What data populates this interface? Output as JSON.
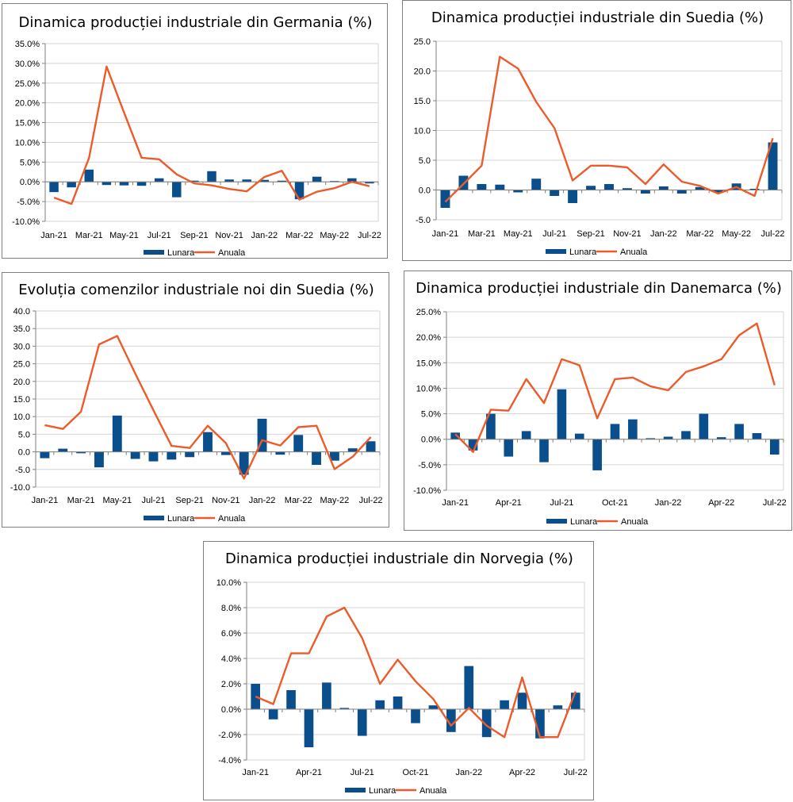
{
  "colors": {
    "monthly": "#0a4f8c",
    "annual": "#ec5b2a",
    "grid": "#d4d4d4",
    "axis": "#7f7f7f"
  },
  "chart_data": [
    {
      "id": "germania",
      "type": "bar+line",
      "title": "Dinamica producției industriale din Germania (%)",
      "x_tick_labels": [
        "Jan-21",
        "Mar-21",
        "May-21",
        "Jul-21",
        "Sep-21",
        "Nov-21",
        "Jan-22",
        "Mar-22",
        "May-22",
        "Jul-22"
      ],
      "y_tick_labels": [
        "35.0%",
        "30.0%",
        "25.0%",
        "20.0%",
        "15.0%",
        "10.0%",
        "5.0%",
        "0.0%",
        "-5.0%",
        "-10.0%"
      ],
      "ylim": [
        -10,
        35
      ],
      "legend": [
        "Lunara",
        "Anuala"
      ],
      "series": [
        {
          "name": "Lunara",
          "kind": "bar",
          "values": [
            -2.6,
            -1.4,
            3.1,
            -0.8,
            -0.9,
            -1.0,
            0.9,
            -3.9,
            0.3,
            2.7,
            0.6,
            0.6,
            0.5,
            0.3,
            -4.4,
            1.3,
            0.2,
            0.9,
            -0.4
          ]
        },
        {
          "name": "Anuala",
          "kind": "line",
          "values": [
            -4.0,
            -5.6,
            6.1,
            29.2,
            17.5,
            6.1,
            5.7,
            1.9,
            -0.4,
            -0.9,
            -1.8,
            -2.4,
            1.2,
            2.8,
            -4.5,
            -2.5,
            -1.6,
            0.0,
            -1.1
          ]
        }
      ]
    },
    {
      "id": "suedia",
      "type": "bar+line",
      "title": "Dinamica producției industriale din Suedia (%)",
      "x_tick_labels": [
        "Jan-21",
        "Mar-21",
        "May-21",
        "Jul-21",
        "Sep-21",
        "Nov-21",
        "Jan-22",
        "Mar-22",
        "May-22",
        "Jul-22"
      ],
      "y_tick_labels": [
        "25.0",
        "20.0",
        "15.0",
        "10.0",
        "5.0",
        "0.0",
        "-5.0"
      ],
      "ylim": [
        -5,
        25
      ],
      "legend": [
        "Lunara",
        "Anuala"
      ],
      "series": [
        {
          "name": "Lunara",
          "kind": "bar",
          "values": [
            -3.0,
            2.4,
            1.0,
            0.9,
            -0.4,
            1.9,
            -1.0,
            -2.2,
            0.7,
            1.0,
            0.3,
            -0.6,
            0.6,
            -0.6,
            0.5,
            -0.4,
            1.1,
            0.2,
            8.0
          ]
        },
        {
          "name": "Anuala",
          "kind": "line",
          "values": [
            -2.0,
            1.0,
            4.1,
            22.4,
            20.4,
            14.8,
            10.4,
            1.6,
            4.1,
            4.1,
            3.8,
            1.0,
            4.3,
            1.4,
            0.7,
            -0.6,
            0.5,
            -1.0,
            8.7
          ]
        }
      ]
    },
    {
      "id": "comenzi-suedia",
      "type": "bar+line",
      "title": "Evoluția comenzilor industriale noi din Suedia (%)",
      "x_tick_labels": [
        "Jan-21",
        "Mar-21",
        "May-21",
        "Jul-21",
        "Sep-21",
        "Nov-21",
        "Jan-22",
        "Mar-22",
        "May-22",
        "Jul-22"
      ],
      "y_tick_labels": [
        "40.0",
        "35.0",
        "30.0",
        "25.0",
        "20.0",
        "15.0",
        "10.0",
        "5.0",
        "0.0",
        "-5.0",
        "-10.0"
      ],
      "ylim": [
        -10,
        40
      ],
      "legend": [
        "Lunara",
        "Anuala"
      ],
      "series": [
        {
          "name": "Lunara",
          "kind": "bar",
          "values": [
            -1.8,
            0.9,
            -0.4,
            -4.4,
            10.3,
            -2.0,
            -2.7,
            -2.2,
            -1.5,
            5.6,
            -0.9,
            -6.5,
            9.4,
            -0.8,
            4.8,
            -3.7,
            -2.5,
            1.0,
            3.0
          ]
        },
        {
          "name": "Anuala",
          "kind": "line",
          "values": [
            7.6,
            6.5,
            11.4,
            30.5,
            32.9,
            22.2,
            11.8,
            1.7,
            1.1,
            7.4,
            2.5,
            -7.6,
            3.3,
            1.8,
            7.0,
            7.4,
            -4.9,
            -1.4,
            4.2
          ]
        }
      ]
    },
    {
      "id": "danemarca",
      "type": "bar+line",
      "title": "Dinamica producției industriale din Danemarca (%)",
      "x_tick_labels": [
        "Jan-21",
        "Apr-21",
        "Jul-21",
        "Oct-21",
        "Jan-22",
        "Apr-22",
        "Jul-22"
      ],
      "y_tick_labels": [
        "25.0%",
        "20.0%",
        "15.0%",
        "10.0%",
        "5.0%",
        "0.0%",
        "-5.0%",
        "-10.0%"
      ],
      "ylim": [
        -10,
        25
      ],
      "legend": [
        "Lunara",
        "Anuala"
      ],
      "series": [
        {
          "name": "Lunara",
          "kind": "bar",
          "values": [
            1.3,
            -2.2,
            5.0,
            -3.4,
            1.6,
            -4.5,
            9.8,
            1.1,
            -6.1,
            3.0,
            3.9,
            0.2,
            0.5,
            1.6,
            5.0,
            0.4,
            3.0,
            1.2,
            -3.0
          ]
        },
        {
          "name": "Anuala",
          "kind": "line",
          "values": [
            1.0,
            -2.5,
            5.8,
            5.6,
            11.8,
            7.1,
            15.7,
            14.5,
            4.1,
            11.8,
            12.1,
            10.4,
            9.6,
            13.2,
            14.3,
            15.7,
            20.4,
            22.7,
            10.6
          ]
        }
      ]
    },
    {
      "id": "norvegia",
      "type": "bar+line",
      "title": "Dinamica producției industriale din Norvegia (%)",
      "x_tick_labels": [
        "Jan-21",
        "Apr-21",
        "Jul-21",
        "Oct-21",
        "Jan-22",
        "Apr-22",
        "Jul-22"
      ],
      "y_tick_labels": [
        "10.0%",
        "8.0%",
        "6.0%",
        "4.0%",
        "2.0%",
        "0.0%",
        "-2.0%",
        "-4.0%"
      ],
      "ylim": [
        -4,
        10
      ],
      "legend": [
        "Lunara",
        "Anuala"
      ],
      "series": [
        {
          "name": "Lunara",
          "kind": "bar",
          "values": [
            2.0,
            -0.8,
            1.5,
            -3.0,
            2.1,
            0.1,
            -2.1,
            0.7,
            1.0,
            -1.1,
            0.3,
            -1.8,
            3.4,
            -2.2,
            0.7,
            1.3,
            -2.3,
            0.3,
            1.3
          ]
        },
        {
          "name": "Anuala",
          "kind": "line",
          "values": [
            1.0,
            0.4,
            4.4,
            4.4,
            7.3,
            8.0,
            5.6,
            2.0,
            3.9,
            2.2,
            0.8,
            -1.3,
            0.1,
            -1.3,
            -2.2,
            2.5,
            -2.2,
            -2.2,
            1.4
          ]
        }
      ]
    }
  ]
}
